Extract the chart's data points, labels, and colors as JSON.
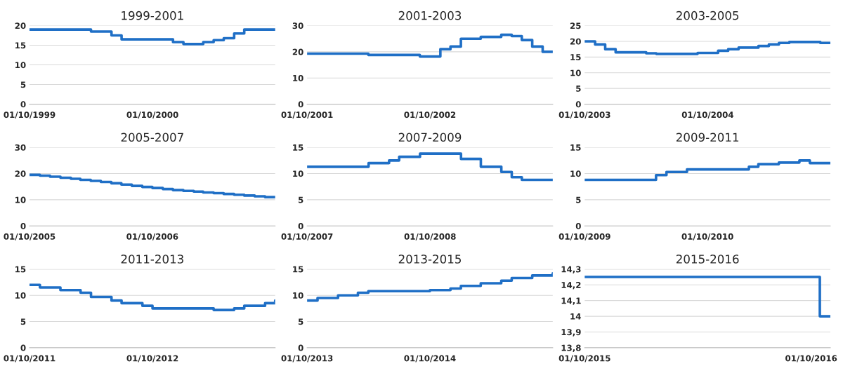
{
  "chart_data": [
    {
      "type": "step",
      "title": "1999-2001",
      "x": [
        "1999-10-01",
        "2000-04-01",
        "2000-06-01",
        "2000-07-01",
        "2000-12-01",
        "2001-01-01",
        "2001-03-01",
        "2001-04-01",
        "2001-05-01",
        "2001-06-01",
        "2001-07-01",
        "2001-10-01"
      ],
      "series": [
        {
          "color": "#1f6fc6",
          "values": [
            19,
            18.5,
            17.5,
            16.5,
            15.8,
            15.3,
            15.8,
            16.3,
            16.8,
            18,
            19,
            19
          ]
        }
      ],
      "xlim": [
        "1999-10-01",
        "2001-10-01"
      ],
      "xticks": [
        {
          "value": "1999-10-01",
          "label": "01/10/1999"
        },
        {
          "value": "2000-10-01",
          "label": "01/10/2000"
        }
      ],
      "ylim": [
        0,
        20
      ],
      "yticks": [
        0,
        5,
        10,
        15,
        20
      ],
      "grid": "y"
    },
    {
      "type": "step",
      "title": "2001-2003",
      "x": [
        "2001-10-01",
        "2002-04-01",
        "2002-09-01",
        "2002-11-01",
        "2002-12-01",
        "2003-01-01",
        "2003-03-01",
        "2003-05-01",
        "2003-06-01",
        "2003-07-01",
        "2003-08-01",
        "2003-09-01",
        "2003-10-01"
      ],
      "series": [
        {
          "color": "#1f6fc6",
          "values": [
            19.3,
            18.8,
            18.2,
            21,
            22,
            25,
            25.7,
            26.5,
            26,
            24.5,
            22,
            20,
            20
          ]
        }
      ],
      "xlim": [
        "2001-10-01",
        "2003-10-01"
      ],
      "xticks": [
        {
          "value": "2001-10-01",
          "label": "01/10/2001"
        },
        {
          "value": "2002-10-01",
          "label": "01/10/2002"
        }
      ],
      "ylim": [
        0,
        30
      ],
      "yticks": [
        0,
        10,
        20,
        30
      ],
      "grid": "y"
    },
    {
      "type": "step",
      "title": "2003-2005",
      "x": [
        "2003-10-01",
        "2003-11-01",
        "2003-12-01",
        "2004-01-01",
        "2004-04-01",
        "2004-05-01",
        "2004-09-01",
        "2004-11-01",
        "2004-12-01",
        "2005-01-01",
        "2005-03-01",
        "2005-04-01",
        "2005-05-01",
        "2005-06-01",
        "2005-09-01",
        "2005-10-01"
      ],
      "series": [
        {
          "color": "#1f6fc6",
          "values": [
            20,
            19,
            17.5,
            16.5,
            16.2,
            16,
            16.3,
            17,
            17.5,
            18,
            18.5,
            19,
            19.5,
            19.8,
            19.5,
            19.5
          ]
        }
      ],
      "xlim": [
        "2003-10-01",
        "2005-10-01"
      ],
      "xticks": [
        {
          "value": "2003-10-01",
          "label": "01/10/2003"
        },
        {
          "value": "2004-10-01",
          "label": "01/10/2004"
        }
      ],
      "ylim": [
        0,
        25
      ],
      "yticks": [
        0,
        5,
        10,
        15,
        20,
        25
      ],
      "grid": "y"
    },
    {
      "type": "step",
      "title": "2005-2007",
      "x": [
        "2005-10-01",
        "2005-11-01",
        "2005-12-01",
        "2006-01-01",
        "2006-02-01",
        "2006-03-01",
        "2006-04-01",
        "2006-05-01",
        "2006-06-01",
        "2006-07-01",
        "2006-08-01",
        "2006-09-01",
        "2006-10-01",
        "2006-11-01",
        "2006-12-01",
        "2007-01-01",
        "2007-02-01",
        "2007-03-01",
        "2007-04-01",
        "2007-05-01",
        "2007-06-01",
        "2007-07-01",
        "2007-08-01",
        "2007-09-01",
        "2007-10-01"
      ],
      "series": [
        {
          "color": "#1f6fc6",
          "values": [
            19.5,
            19.2,
            18.8,
            18.4,
            18,
            17.6,
            17.2,
            16.8,
            16.3,
            15.8,
            15.3,
            14.9,
            14.5,
            14.1,
            13.7,
            13.4,
            13.1,
            12.8,
            12.5,
            12.2,
            11.9,
            11.6,
            11.3,
            11,
            11
          ]
        }
      ],
      "xlim": [
        "2005-10-01",
        "2007-10-01"
      ],
      "xticks": [
        {
          "value": "2005-10-01",
          "label": "01/10/2005"
        },
        {
          "value": "2006-10-01",
          "label": "01/10/2006"
        }
      ],
      "ylim": [
        0,
        30
      ],
      "yticks": [
        0,
        10,
        20,
        30
      ],
      "grid": "y"
    },
    {
      "type": "step",
      "title": "2007-2009",
      "x": [
        "2007-10-01",
        "2008-04-01",
        "2008-06-01",
        "2008-07-01",
        "2008-09-01",
        "2009-01-01",
        "2009-03-01",
        "2009-05-01",
        "2009-06-01",
        "2009-07-01",
        "2009-10-01"
      ],
      "series": [
        {
          "color": "#1f6fc6",
          "values": [
            11.3,
            12,
            12.5,
            13.2,
            13.8,
            12.8,
            11.3,
            10.3,
            9.3,
            8.8,
            8.8
          ]
        }
      ],
      "xlim": [
        "2007-10-01",
        "2009-10-01"
      ],
      "xticks": [
        {
          "value": "2007-10-01",
          "label": "01/10/2007"
        },
        {
          "value": "2008-10-01",
          "label": "01/10/2008"
        }
      ],
      "ylim": [
        0,
        15
      ],
      "yticks": [
        0,
        5,
        10,
        15
      ],
      "grid": "y"
    },
    {
      "type": "step",
      "title": "2009-2011",
      "x": [
        "2009-10-01",
        "2010-05-01",
        "2010-06-01",
        "2010-08-01",
        "2011-02-01",
        "2011-03-01",
        "2011-05-01",
        "2011-07-01",
        "2011-08-01",
        "2011-10-01"
      ],
      "series": [
        {
          "color": "#1f6fc6",
          "values": [
            8.8,
            9.7,
            10.3,
            10.8,
            11.3,
            11.8,
            12.1,
            12.5,
            12,
            12
          ]
        }
      ],
      "xlim": [
        "2009-10-01",
        "2011-10-01"
      ],
      "xticks": [
        {
          "value": "2009-10-01",
          "label": "01/10/2009"
        },
        {
          "value": "2010-10-01",
          "label": "01/10/2010"
        }
      ],
      "ylim": [
        0,
        15
      ],
      "yticks": [
        0,
        5,
        10,
        15
      ],
      "grid": "y"
    },
    {
      "type": "step",
      "title": "2011-2013",
      "x": [
        "2011-10-01",
        "2011-11-01",
        "2012-01-01",
        "2012-03-01",
        "2012-04-01",
        "2012-06-01",
        "2012-07-01",
        "2012-09-01",
        "2012-10-01",
        "2013-04-01",
        "2013-06-01",
        "2013-07-01",
        "2013-09-01",
        "2013-10-01"
      ],
      "series": [
        {
          "color": "#1f6fc6",
          "values": [
            12,
            11.5,
            11,
            10.5,
            9.7,
            9,
            8.5,
            8,
            7.5,
            7.2,
            7.5,
            8,
            8.5,
            9
          ]
        }
      ],
      "xlim": [
        "2011-10-01",
        "2013-10-01"
      ],
      "xticks": [
        {
          "value": "2011-10-01",
          "label": "01/10/2011"
        },
        {
          "value": "2012-10-01",
          "label": "01/10/2012"
        }
      ],
      "ylim": [
        0,
        15
      ],
      "yticks": [
        0,
        5,
        10,
        15
      ],
      "grid": "y"
    },
    {
      "type": "step",
      "title": "2013-2015",
      "x": [
        "2013-10-01",
        "2013-11-01",
        "2014-01-01",
        "2014-03-01",
        "2014-04-01",
        "2014-10-01",
        "2014-12-01",
        "2015-01-01",
        "2015-03-01",
        "2015-05-01",
        "2015-06-01",
        "2015-08-01",
        "2015-10-01"
      ],
      "series": [
        {
          "color": "#1f6fc6",
          "values": [
            9,
            9.5,
            10,
            10.5,
            10.8,
            11,
            11.3,
            11.8,
            12.3,
            12.8,
            13.3,
            13.8,
            14.2
          ]
        }
      ],
      "xlim": [
        "2013-10-01",
        "2015-10-01"
      ],
      "xticks": [
        {
          "value": "2013-10-01",
          "label": "01/10/2013"
        },
        {
          "value": "2014-10-01",
          "label": "01/10/2014"
        }
      ],
      "ylim": [
        0,
        15
      ],
      "yticks": [
        0,
        5,
        10,
        15
      ],
      "grid": "y"
    },
    {
      "type": "step",
      "title": "2015-2016",
      "x": [
        "2015-10-01",
        "2016-10-15",
        "2016-11-01"
      ],
      "series": [
        {
          "color": "#1f6fc6",
          "values": [
            14.25,
            14,
            14
          ]
        }
      ],
      "xlim": [
        "2015-10-01",
        "2016-11-01"
      ],
      "xticks": [
        {
          "value": "2015-10-01",
          "label": "01/10/2015"
        },
        {
          "value": "2016-10-01",
          "label": "01/10/2016"
        }
      ],
      "ylim": [
        13.8,
        14.3
      ],
      "yticks": [
        {
          "value": 13.8,
          "label": "13,8"
        },
        {
          "value": 13.9,
          "label": "13,9"
        },
        {
          "value": 14,
          "label": "14"
        },
        {
          "value": 14.1,
          "label": "14,1"
        },
        {
          "value": 14.2,
          "label": "14,2"
        },
        {
          "value": 14.3,
          "label": "14,3"
        }
      ],
      "grid": "y"
    }
  ]
}
